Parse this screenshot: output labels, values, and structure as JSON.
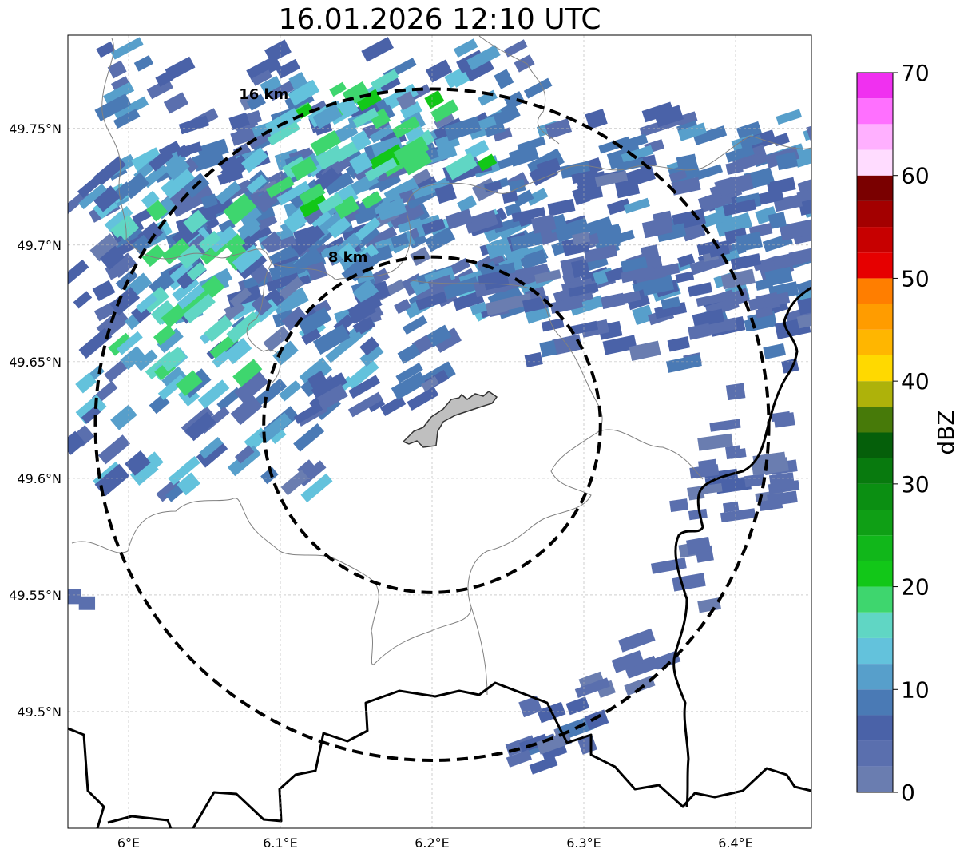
{
  "title": "16.01.2026 12:10 UTC",
  "map": {
    "lon_range": [
      5.96,
      6.45
    ],
    "lat_range": [
      49.45,
      49.79
    ],
    "lon_ticks": [
      {
        "value": 6.0,
        "label": "6°E"
      },
      {
        "value": 6.1,
        "label": "6.1°E"
      },
      {
        "value": 6.2,
        "label": "6.2°E"
      },
      {
        "value": 6.3,
        "label": "6.3°E"
      },
      {
        "value": 6.4,
        "label": "6.4°E"
      }
    ],
    "lat_ticks": [
      {
        "value": 49.75,
        "label": "49.75°N"
      },
      {
        "value": 49.7,
        "label": "49.7°N"
      },
      {
        "value": 49.65,
        "label": "49.65°N"
      },
      {
        "value": 49.6,
        "label": "49.6°N"
      },
      {
        "value": 49.55,
        "label": "49.55°N"
      },
      {
        "value": 49.5,
        "label": "49.5°N"
      }
    ],
    "grid": true,
    "rings": [
      {
        "label": "8 km",
        "radius_km": 8
      },
      {
        "label": "16 km",
        "radius_km": 16
      }
    ],
    "radar_site": {
      "lon": 6.2,
      "lat": 49.623
    }
  },
  "colorbar": {
    "label": "dBZ",
    "min": 0,
    "max": 70,
    "ticks": [
      {
        "value": 0,
        "label": "0"
      },
      {
        "value": 10,
        "label": "10"
      },
      {
        "value": 20,
        "label": "20"
      },
      {
        "value": 30,
        "label": "30"
      },
      {
        "value": 40,
        "label": "40"
      },
      {
        "value": 50,
        "label": "50"
      },
      {
        "value": 60,
        "label": "60"
      },
      {
        "value": 70,
        "label": "70"
      }
    ],
    "bins": [
      {
        "from": 0,
        "to": 2.5,
        "color": "#6a7db0"
      },
      {
        "from": 2.5,
        "to": 5,
        "color": "#5a6fae"
      },
      {
        "from": 5,
        "to": 7.5,
        "color": "#4a62a8"
      },
      {
        "from": 7.5,
        "to": 10,
        "color": "#4a7ab5"
      },
      {
        "from": 10,
        "to": 12.5,
        "color": "#579fcb"
      },
      {
        "from": 12.5,
        "to": 15,
        "color": "#63c2dc"
      },
      {
        "from": 15,
        "to": 17.5,
        "color": "#60d6c4"
      },
      {
        "from": 17.5,
        "to": 20,
        "color": "#3ed66e"
      },
      {
        "from": 20,
        "to": 22.5,
        "color": "#12c718"
      },
      {
        "from": 22.5,
        "to": 25,
        "color": "#11b71a"
      },
      {
        "from": 25,
        "to": 27.5,
        "color": "#0f9f15"
      },
      {
        "from": 27.5,
        "to": 30,
        "color": "#0b8f12"
      },
      {
        "from": 30,
        "to": 32.5,
        "color": "#087a0e"
      },
      {
        "from": 32.5,
        "to": 35,
        "color": "#055f0a"
      },
      {
        "from": 35,
        "to": 37.5,
        "color": "#477a09"
      },
      {
        "from": 37.5,
        "to": 40,
        "color": "#aeb20a"
      },
      {
        "from": 40,
        "to": 42.5,
        "color": "#ffd900"
      },
      {
        "from": 42.5,
        "to": 45,
        "color": "#ffb600"
      },
      {
        "from": 45,
        "to": 47.5,
        "color": "#ff9c00"
      },
      {
        "from": 47.5,
        "to": 50,
        "color": "#ff7e00"
      },
      {
        "from": 50,
        "to": 52.5,
        "color": "#e60000"
      },
      {
        "from": 52.5,
        "to": 55,
        "color": "#c70000"
      },
      {
        "from": 55,
        "to": 57.5,
        "color": "#a30000"
      },
      {
        "from": 57.5,
        "to": 60,
        "color": "#7a0000"
      },
      {
        "from": 60,
        "to": 62.5,
        "color": "#ffdcff"
      },
      {
        "from": 62.5,
        "to": 65,
        "color": "#ffb0ff"
      },
      {
        "from": 65,
        "to": 67.5,
        "color": "#ff70ff"
      },
      {
        "from": 67.5,
        "to": 70,
        "color": "#f030f0"
      }
    ]
  }
}
